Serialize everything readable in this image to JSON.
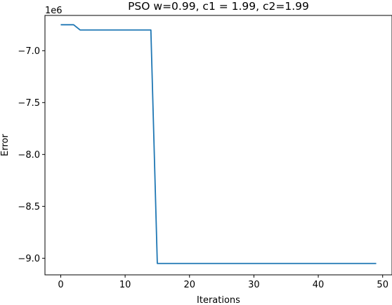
{
  "chart_data": {
    "type": "line",
    "title": "PSO w=0.99, c1 = 1.99, c2=1.99",
    "xlabel": "Iterations",
    "ylabel": "Error",
    "offset_text": "1e6",
    "xlim": [
      -2.45,
      51.45
    ],
    "ylim": [
      -9.16,
      -6.66
    ],
    "xticks": [
      0,
      10,
      20,
      30,
      40,
      50
    ],
    "xtick_labels": [
      "0",
      "10",
      "20",
      "30",
      "40",
      "50"
    ],
    "yticks": [
      -7.0,
      -7.5,
      -8.0,
      -8.5,
      -9.0
    ],
    "ytick_labels": [
      "−7.0",
      "−7.5",
      "−8.0",
      "−8.5",
      "−9.0"
    ],
    "grid": false,
    "series": [
      {
        "color": "#1f77b4",
        "x": [
          0,
          1,
          2,
          3,
          4,
          5,
          6,
          7,
          8,
          9,
          10,
          11,
          12,
          13,
          14,
          15,
          16,
          17,
          18,
          19,
          20,
          21,
          22,
          23,
          24,
          25,
          26,
          27,
          28,
          29,
          30,
          31,
          32,
          33,
          34,
          35,
          36,
          37,
          38,
          39,
          40,
          41,
          42,
          43,
          44,
          45,
          46,
          47,
          48,
          49
        ],
        "y": [
          -6.75,
          -6.75,
          -6.75,
          -6.8,
          -6.8,
          -6.8,
          -6.8,
          -6.8,
          -6.8,
          -6.8,
          -6.8,
          -6.8,
          -6.8,
          -6.8,
          -6.8,
          -9.05,
          -9.05,
          -9.05,
          -9.05,
          -9.05,
          -9.05,
          -9.05,
          -9.05,
          -9.05,
          -9.05,
          -9.05,
          -9.05,
          -9.05,
          -9.05,
          -9.05,
          -9.05,
          -9.05,
          -9.05,
          -9.05,
          -9.05,
          -9.05,
          -9.05,
          -9.05,
          -9.05,
          -9.05,
          -9.05,
          -9.05,
          -9.05,
          -9.05,
          -9.05,
          -9.05,
          -9.05,
          -9.05,
          -9.05,
          -9.05
        ]
      }
    ]
  }
}
